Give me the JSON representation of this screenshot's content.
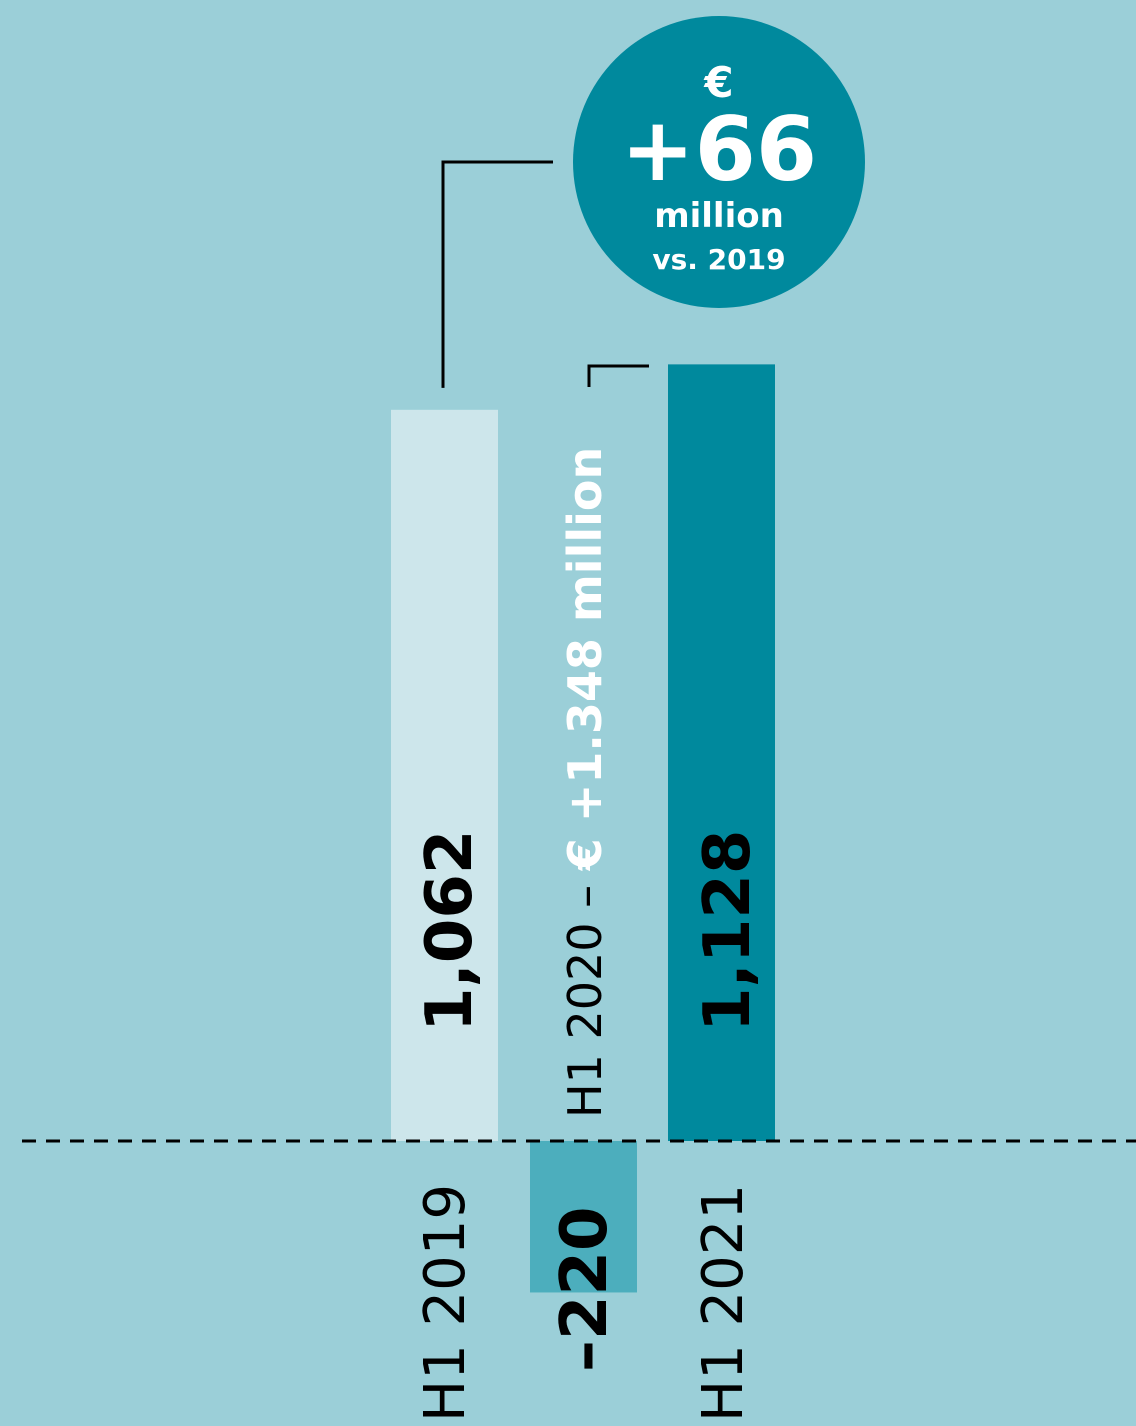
{
  "colors": {
    "background": "#9bcfd8",
    "bar_h1_2019": "#cde6eb",
    "bar_h1_2020": "#4caebd",
    "bar_h1_2021": "#00899d",
    "badge": "#00899d",
    "text_dark": "#000000",
    "text_light": "#ffffff"
  },
  "badge": {
    "currency": "€",
    "value": "+66",
    "unit": "million",
    "comparison": "vs. 2019"
  },
  "chart_data": {
    "type": "bar",
    "categories": [
      "H1 2019",
      "H1 2020",
      "H1 2021"
    ],
    "values": [
      1062,
      -220,
      1128
    ],
    "value_labels": [
      "1,062",
      "–220",
      "1,128"
    ],
    "annotation_h1_2020_prefix": "H1 2020 –",
    "annotation_h1_2020_change": "€ +1.348 million",
    "baseline": 0,
    "baseline_style": "dashed",
    "ylim": [
      -220,
      1128
    ],
    "grid": false,
    "legend": "none"
  }
}
